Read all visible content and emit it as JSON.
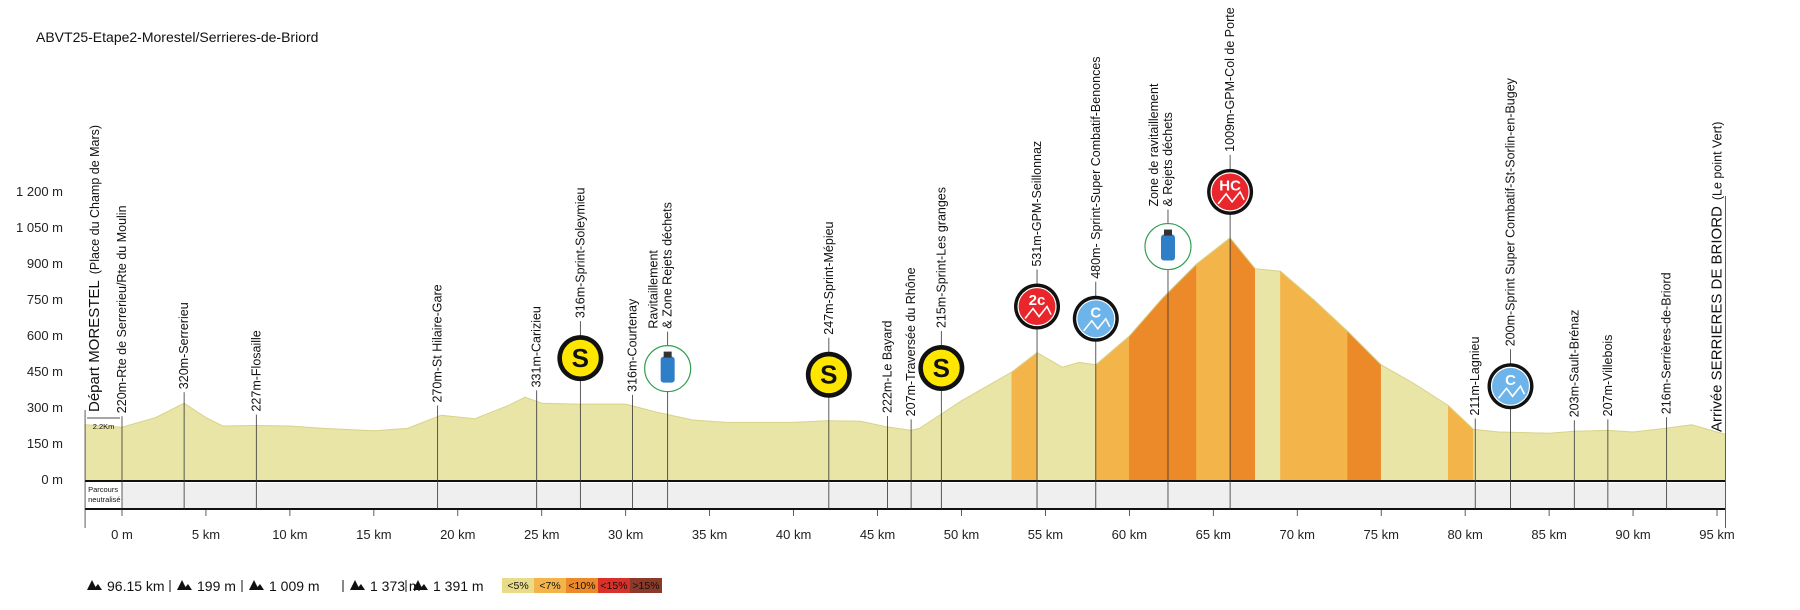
{
  "chart_data": {
    "type": "area",
    "title": "ABVT25-Etape2-Morestel/Serrieres-de-Briord",
    "color": "#e8e5a6",
    "xlim": [
      -2.2,
      95.5
    ],
    "ylim": [
      0,
      1200
    ],
    "yticks": [
      0,
      {
        "value": 150,
        "label": "150 m"
      },
      {
        "value": 300,
        "label": "300 m"
      },
      {
        "value": 450,
        "label": "450 m"
      },
      {
        "value": 600,
        "label": "600 m"
      },
      {
        "value": 750,
        "label": "750 m"
      },
      {
        "value": 900,
        "label": "900 m"
      },
      {
        "value": 1050,
        "label": "1 050 m"
      },
      {
        "value": 1200,
        "label": "1 200 m"
      }
    ],
    "yticks_zero_label": "0 m",
    "xticks": [
      {
        "value": 0,
        "label": "0 m"
      },
      {
        "value": 5,
        "label": "5 km"
      },
      {
        "value": 10,
        "label": "10 km"
      },
      {
        "value": 15,
        "label": "15 km"
      },
      {
        "value": 20,
        "label": "20 km"
      },
      {
        "value": 25,
        "label": "25 km"
      },
      {
        "value": 30,
        "label": "30 km"
      },
      {
        "value": 35,
        "label": "35 km"
      },
      {
        "value": 40,
        "label": "40 km"
      },
      {
        "value": 45,
        "label": "45 km"
      },
      {
        "value": 50,
        "label": "50 km"
      },
      {
        "value": 55,
        "label": "55 km"
      },
      {
        "value": 60,
        "label": "60 km"
      },
      {
        "value": 65,
        "label": "65 km"
      },
      {
        "value": 70,
        "label": "70 km"
      },
      {
        "value": 75,
        "label": "75 km"
      },
      {
        "value": 80,
        "label": "80 km"
      },
      {
        "value": 85,
        "label": "85 km"
      },
      {
        "value": 90,
        "label": "90 km"
      },
      {
        "value": 95,
        "label": "95 km"
      }
    ],
    "x": [
      -2.2,
      0,
      2,
      3.7,
      5,
      6,
      8,
      10,
      12,
      15,
      17,
      19,
      21,
      23,
      24,
      25,
      27,
      30,
      32,
      34,
      36,
      40,
      42,
      44,
      45.5,
      47,
      47.5,
      50,
      53,
      54.5,
      56,
      57,
      58,
      60,
      62,
      64,
      66,
      67.5,
      69,
      71,
      73,
      75,
      77,
      79,
      80.5,
      82,
      85,
      86.5,
      88.5,
      90,
      92,
      93.5,
      95.5
    ],
    "values": [
      230,
      220,
      260,
      320,
      260,
      225,
      227,
      225,
      215,
      205,
      215,
      270,
      255,
      310,
      345,
      320,
      316,
      316,
      280,
      250,
      240,
      240,
      247,
      245,
      222,
      207,
      215,
      330,
      450,
      531,
      470,
      490,
      480,
      600,
      760,
      900,
      1009,
      880,
      870,
      750,
      620,
      480,
      400,
      310,
      211,
      200,
      195,
      203,
      207,
      200,
      216,
      230,
      190
    ],
    "start": {
      "label": "Départ MORESTEL",
      "note": "(Place du Champ de Mars)"
    },
    "finish": {
      "label": "Arrivée SERRIERES DE BRIORD",
      "note": "(Le point Vert)"
    },
    "neutral": {
      "lines": [
        "Parcours",
        "neutralisé"
      ],
      "distance": "2.2Km"
    },
    "annotations": [
      {
        "km": 0,
        "lines": [
          "220m-Rte de Serrerieu/Rte du Moulin"
        ]
      },
      {
        "km": 3.7,
        "lines": [
          "320m-Serrerieu"
        ]
      },
      {
        "km": 8,
        "lines": [
          "227m-Flosaille"
        ]
      },
      {
        "km": 18.8,
        "lines": [
          "270m-St Hilaire-Gare"
        ]
      },
      {
        "km": 24.7,
        "lines": [
          "331m-Carizieu"
        ]
      },
      {
        "km": 27.3,
        "lines": [
          "316m-Sprint-Soleymieu"
        ],
        "icon": {
          "text": "S",
          "color": "#ffe600"
        }
      },
      {
        "km": 30.4,
        "lines": [
          "316m-Courtenay"
        ]
      },
      {
        "km": 32.5,
        "lines": [
          "Ravitaillement",
          "& Zone Rejets déchets"
        ],
        "icon": {
          "color": "#2e9e4f"
        }
      },
      {
        "km": 42.1,
        "lines": [
          "247m-Sprint-Mépieu"
        ],
        "icon": {
          "text": "S",
          "color": "#ffe600"
        }
      },
      {
        "km": 45.6,
        "lines": [
          "222m-Le Bayard"
        ]
      },
      {
        "km": 47,
        "lines": [
          "207m-Traversée du Rhône"
        ]
      },
      {
        "km": 48.8,
        "lines": [
          "215m-Sprint-Les granges"
        ],
        "icon": {
          "text": "S",
          "color": "#ffe600"
        }
      },
      {
        "km": 54.5,
        "lines": [
          "531m-GPM-Seillonnaz"
        ],
        "icon": {
          "text": "2c",
          "color": "#e8262b"
        }
      },
      {
        "km": 58,
        "lines": [
          "480m- Sprint-Super Combatif-Benonces"
        ],
        "icon": {
          "text": "C",
          "color": "#6cb4ea"
        }
      },
      {
        "km": 62.3,
        "lines": [
          "Zone de ravitaillement",
          "& Rejets déchets"
        ],
        "icon": {
          "color": "#2e9e4f"
        }
      },
      {
        "km": 66,
        "lines": [
          "1009m-GPM-Col de Porte"
        ],
        "icon": {
          "text": "HC",
          "color": "#e8262b"
        }
      },
      {
        "km": 80.6,
        "lines": [
          "211m-Lagnieu"
        ]
      },
      {
        "km": 82.7,
        "lines": [
          "200m-Sprint Super Combatif-St-Sorlin-en-Bugey"
        ],
        "icon": {
          "text": "C",
          "color": "#6cb4ea"
        }
      },
      {
        "km": 86.5,
        "lines": [
          "203m-Sault-Brénaz"
        ]
      },
      {
        "km": 88.5,
        "lines": [
          "207m-Villebois"
        ]
      },
      {
        "km": 92,
        "lines": [
          "216m-Serrières-de-Briord"
        ]
      }
    ],
    "stats": [
      "96.15 km",
      "199 m",
      "1 009 m",
      "1 373 m",
      "1 391 m"
    ],
    "legend": [
      {
        "value": 5,
        "label": "<5%",
        "color": "#e8dc8a"
      },
      {
        "value": 7,
        "label": "<7%",
        "color": "#f3b44a"
      },
      {
        "value": 10,
        "label": "<10%",
        "color": "#ec8a2a"
      },
      {
        "value": 15,
        "label": "<15%",
        "color": "#d9302a"
      },
      {
        "value": 15,
        "label": ">15%",
        "color": "#8b3a2a"
      }
    ]
  }
}
